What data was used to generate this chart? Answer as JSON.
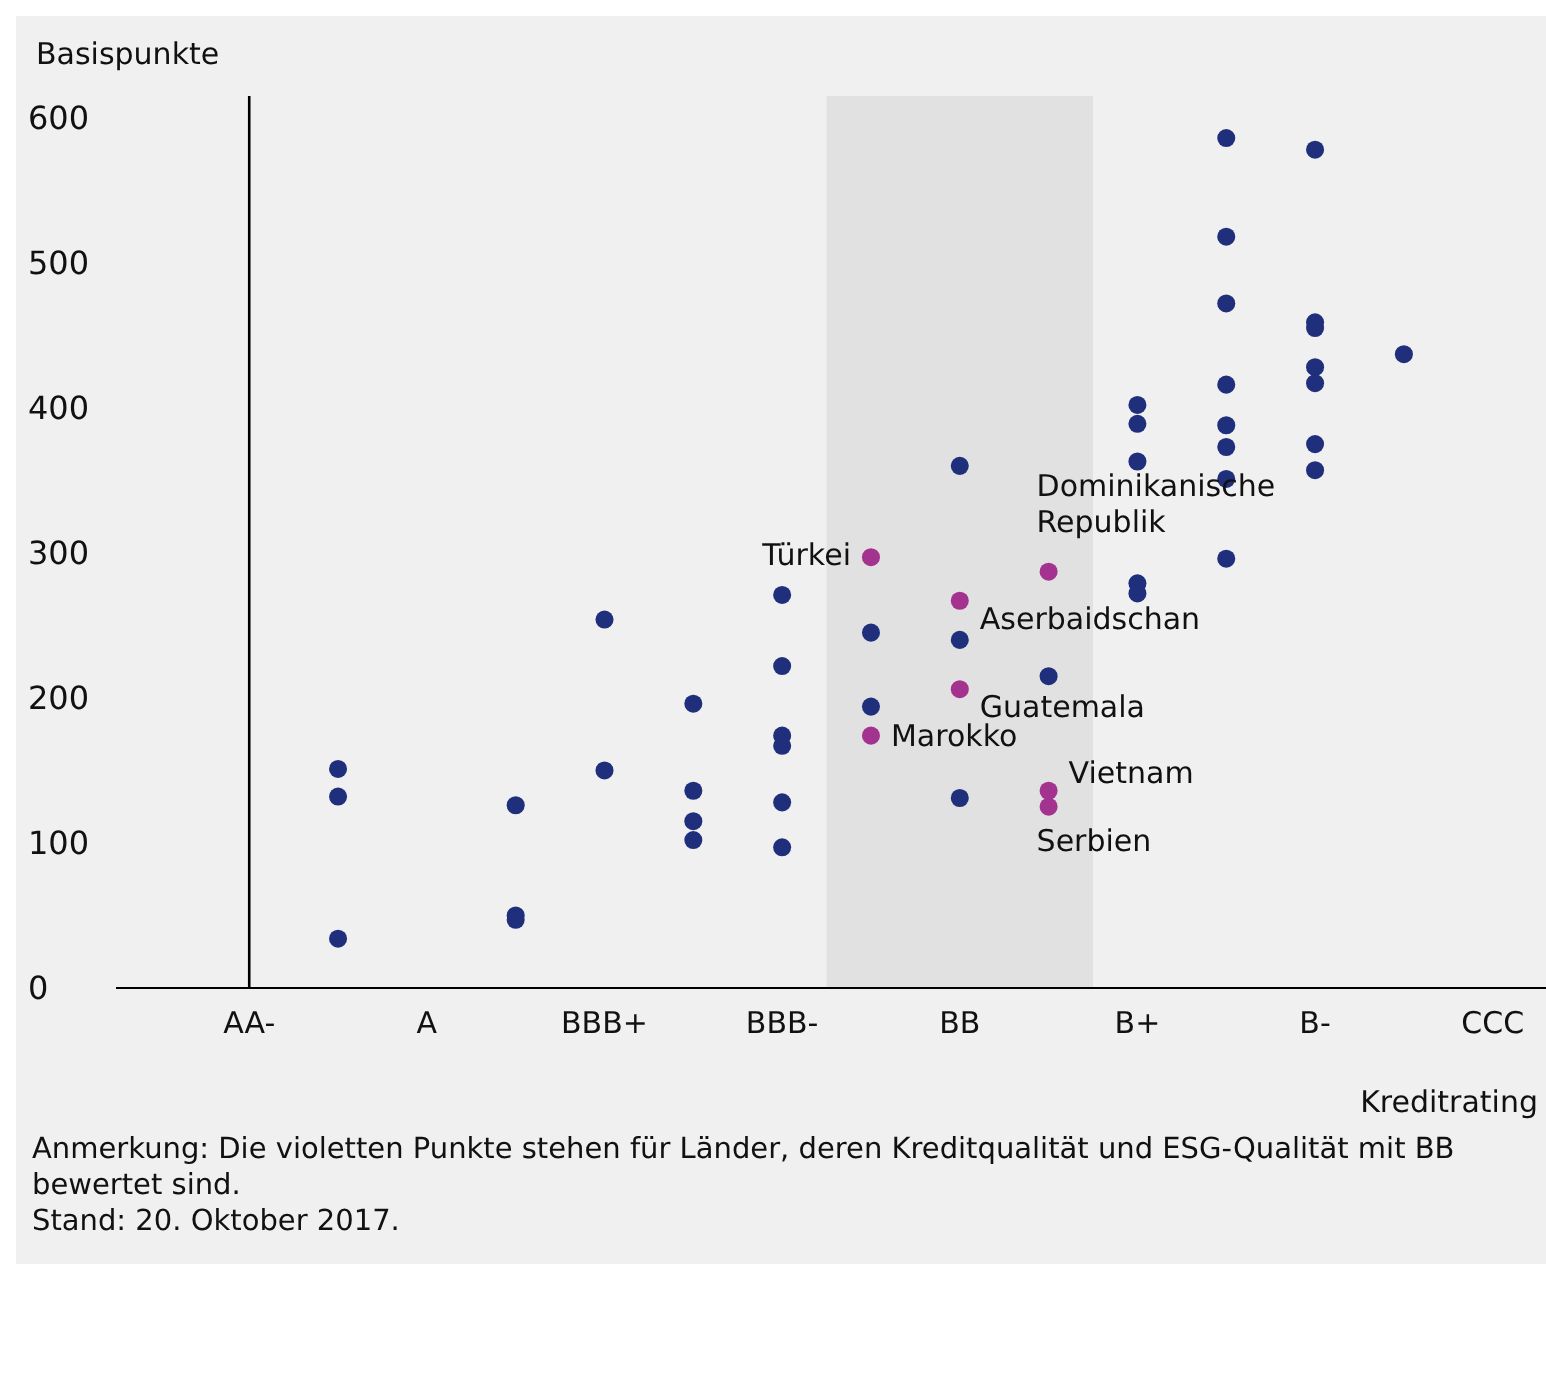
{
  "chart_data": {
    "type": "scatter",
    "ylabel": "Basispunkte",
    "xlabel": "Kreditrating",
    "categories": [
      "AA-",
      null,
      "A",
      null,
      "BBB+",
      null,
      "BBB-",
      null,
      "BB",
      null,
      "B+",
      null,
      "B-",
      null,
      "CCC"
    ],
    "ylim": [
      0,
      615
    ],
    "yticks": [
      0,
      100,
      200,
      300,
      400,
      500,
      600
    ],
    "grid": false,
    "legend": false,
    "marker": "circle",
    "series": [
      {
        "color": "#1f2f7c",
        "values": [
          null,
          151,
          null,
          126,
          254,
          196,
          271,
          245,
          360,
          215,
          402,
          586,
          578,
          437,
          null
        ]
      },
      {
        "color": "#1f2f7c",
        "values": [
          null,
          132,
          null,
          50,
          150,
          136,
          222,
          194,
          240,
          null,
          389,
          518,
          459,
          null,
          null
        ]
      },
      {
        "color": "#1f2f7c",
        "values": [
          null,
          34,
          null,
          47,
          null,
          115,
          174,
          null,
          131,
          null,
          363,
          472,
          455,
          null,
          null
        ]
      },
      {
        "color": "#1f2f7c",
        "values": [
          null,
          null,
          null,
          null,
          null,
          102,
          167,
          null,
          null,
          null,
          279,
          416,
          428,
          null,
          null
        ]
      },
      {
        "color": "#1f2f7c",
        "values": [
          null,
          null,
          null,
          null,
          null,
          null,
          128,
          null,
          null,
          null,
          272,
          388,
          417,
          null,
          null
        ]
      },
      {
        "color": "#1f2f7c",
        "values": [
          null,
          null,
          null,
          null,
          null,
          null,
          97,
          null,
          null,
          null,
          null,
          373,
          375,
          null,
          null
        ]
      },
      {
        "color": "#1f2f7c",
        "values": [
          null,
          null,
          null,
          null,
          null,
          null,
          null,
          null,
          null,
          null,
          null,
          351,
          357,
          null,
          null
        ]
      },
      {
        "color": "#1f2f7c",
        "values": [
          null,
          null,
          null,
          null,
          null,
          null,
          null,
          null,
          null,
          null,
          null,
          296,
          null,
          null,
          null
        ]
      },
      {
        "color": "#a3338f",
        "values": [
          null,
          null,
          null,
          null,
          null,
          null,
          null,
          297,
          267,
          287,
          null,
          null,
          null,
          null,
          null
        ]
      },
      {
        "color": "#a3338f",
        "values": [
          null,
          null,
          null,
          null,
          null,
          null,
          null,
          174,
          206,
          136,
          null,
          null,
          null,
          null,
          null
        ]
      },
      {
        "color": "#a3338f",
        "values": [
          null,
          null,
          null,
          null,
          null,
          null,
          null,
          null,
          null,
          125,
          null,
          null,
          null,
          null,
          null
        ]
      }
    ],
    "ref_lines": [
      {
        "axis": "x",
        "value": "AA-",
        "color": "#000000"
      }
    ],
    "annotations": [
      "Türkei",
      "Marokko",
      {
        "text": "Aserbaidschan",
        "x": "BB",
        "y": 267
      },
      {
        "text": "Guatemala",
        "x": "BB",
        "y": 206
      },
      "Dominikanische\nRepublik",
      "Vietnam",
      "Serbien",
      "Anmerkung: Die violetten Punkte stehen für Länder, deren Kreditqualität und ESG-Qualität mit BB bewertet sind.",
      "Stand: 20. Oktober 2017."
    ]
  }
}
